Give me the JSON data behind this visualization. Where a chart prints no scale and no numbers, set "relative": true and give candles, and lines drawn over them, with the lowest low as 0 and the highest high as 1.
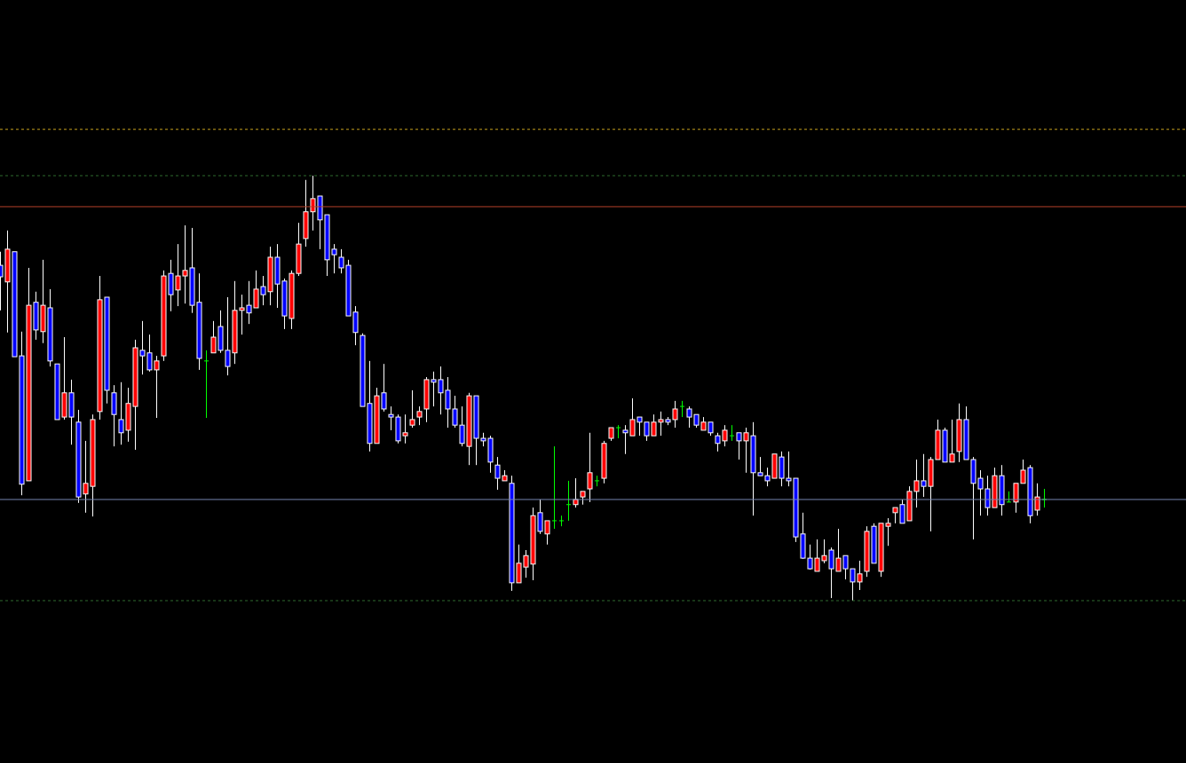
{
  "chart_data": {
    "type": "candlestick",
    "relative": true,
    "tick_labels": false,
    "grid": false,
    "legend": false,
    "categories": [
      null,
      null,
      null,
      null,
      null,
      null,
      null,
      null,
      null,
      null,
      null,
      null,
      null,
      null,
      null,
      null,
      null,
      null,
      null,
      null,
      null,
      null,
      null,
      null,
      null,
      null,
      null,
      null,
      null,
      null,
      null,
      null,
      null,
      null,
      null,
      null,
      null,
      null,
      null,
      null,
      null,
      null,
      null,
      null,
      null,
      null,
      null,
      null,
      null,
      null,
      null,
      null,
      null,
      null,
      null,
      null,
      null,
      null,
      null,
      null,
      null,
      null,
      null,
      null,
      null,
      null,
      null,
      null,
      null,
      null,
      null,
      null,
      null,
      null,
      null,
      null,
      null,
      null,
      null,
      null,
      null,
      null,
      null,
      null,
      null,
      null,
      null,
      null,
      null,
      null,
      null,
      null,
      null,
      null,
      null,
      null,
      null,
      null,
      null,
      null,
      null,
      null,
      null,
      null,
      null,
      null,
      null,
      null,
      null,
      null,
      null,
      null,
      null,
      null,
      null,
      null,
      null,
      null,
      null,
      null,
      null,
      null,
      null,
      null,
      null,
      null,
      null,
      null,
      null,
      null,
      null,
      null,
      null,
      null,
      null,
      null,
      null,
      null,
      null,
      null,
      null,
      null,
      null,
      null,
      null,
      null,
      null,
      null
    ],
    "ohlc": [
      [
        0.789,
        0.821,
        0.683,
        0.762
      ],
      [
        0.75,
        0.871,
        0.631,
        0.827
      ],
      [
        0.821,
        0.821,
        0.574,
        0.574
      ],
      [
        0.576,
        0.633,
        0.248,
        0.274
      ],
      [
        0.282,
        0.783,
        0.282,
        0.695
      ],
      [
        0.702,
        0.727,
        0.614,
        0.637
      ],
      [
        0.633,
        0.802,
        0.606,
        0.695
      ],
      [
        0.689,
        0.733,
        0.551,
        0.564
      ],
      [
        0.557,
        0.557,
        0.426,
        0.426
      ],
      [
        0.432,
        0.62,
        0.426,
        0.489
      ],
      [
        0.489,
        0.52,
        0.367,
        0.432
      ],
      [
        0.42,
        0.449,
        0.23,
        0.244
      ],
      [
        0.251,
        0.376,
        0.207,
        0.276
      ],
      [
        0.269,
        0.438,
        0.198,
        0.426
      ],
      [
        0.445,
        0.764,
        0.426,
        0.708
      ],
      [
        0.714,
        0.714,
        0.464,
        0.495
      ],
      [
        0.489,
        0.507,
        0.363,
        0.438
      ],
      [
        0.426,
        0.514,
        0.367,
        0.395
      ],
      [
        0.401,
        0.501,
        0.374,
        0.464
      ],
      [
        0.457,
        0.614,
        0.355,
        0.595
      ],
      [
        0.589,
        0.658,
        0.532,
        0.576
      ],
      [
        0.583,
        0.626,
        0.539,
        0.543
      ],
      [
        0.543,
        0.576,
        0.43,
        0.564
      ],
      [
        0.576,
        0.777,
        0.564,
        0.764
      ],
      [
        0.77,
        0.802,
        0.681,
        0.72
      ],
      [
        0.731,
        0.839,
        0.693,
        0.764
      ],
      [
        0.764,
        0.883,
        0.699,
        0.777
      ],
      [
        0.783,
        0.877,
        0.677,
        0.695
      ],
      [
        0.702,
        0.77,
        0.543,
        0.57
      ],
      [
        0.564,
        0.589,
        0.43,
        0.564
      ],
      [
        0.583,
        0.658,
        0.583,
        0.62
      ],
      [
        0.645,
        0.683,
        0.583,
        0.589
      ],
      [
        0.589,
        0.714,
        0.53,
        0.551
      ],
      [
        0.583,
        0.752,
        0.557,
        0.683
      ],
      [
        0.683,
        0.72,
        0.626,
        0.689
      ],
      [
        0.695,
        0.752,
        0.651,
        0.677
      ],
      [
        0.689,
        0.777,
        0.689,
        0.733
      ],
      [
        0.739,
        0.764,
        0.695,
        0.72
      ],
      [
        0.727,
        0.833,
        0.695,
        0.808
      ],
      [
        0.808,
        0.839,
        0.689,
        0.745
      ],
      [
        0.752,
        0.758,
        0.639,
        0.67
      ],
      [
        0.664,
        0.777,
        0.639,
        0.77
      ],
      [
        0.77,
        0.889,
        0.764,
        0.839
      ],
      [
        0.852,
        0.99,
        0.833,
        0.915
      ],
      [
        0.915,
        1.0,
        0.871,
        0.946
      ],
      [
        0.952,
        0.952,
        0.827,
        0.896
      ],
      [
        0.908,
        0.908,
        0.764,
        0.802
      ],
      [
        0.827,
        0.839,
        0.77,
        0.814
      ],
      [
        0.808,
        0.827,
        0.77,
        0.783
      ],
      [
        0.789,
        0.802,
        0.67,
        0.67
      ],
      [
        0.679,
        0.693,
        0.601,
        0.631
      ],
      [
        0.624,
        0.629,
        0.457,
        0.457
      ],
      [
        0.464,
        0.564,
        0.351,
        0.37
      ],
      [
        0.37,
        0.501,
        0.37,
        0.482
      ],
      [
        0.489,
        0.557,
        0.445,
        0.451
      ],
      [
        0.438,
        0.457,
        0.401,
        0.432
      ],
      [
        0.432,
        0.438,
        0.37,
        0.376
      ],
      [
        0.388,
        0.438,
        0.37,
        0.395
      ],
      [
        0.413,
        0.495,
        0.407,
        0.426
      ],
      [
        0.432,
        0.457,
        0.413,
        0.445
      ],
      [
        0.451,
        0.526,
        0.42,
        0.52
      ],
      [
        0.52,
        0.539,
        0.457,
        0.514
      ],
      [
        0.52,
        0.551,
        0.438,
        0.489
      ],
      [
        0.495,
        0.526,
        0.407,
        0.451
      ],
      [
        0.451,
        0.482,
        0.407,
        0.413
      ],
      [
        0.413,
        0.457,
        0.363,
        0.37
      ],
      [
        0.363,
        0.489,
        0.319,
        0.482
      ],
      [
        0.482,
        0.482,
        0.319,
        0.382
      ],
      [
        0.382,
        0.395,
        0.363,
        0.376
      ],
      [
        0.382,
        0.388,
        0.301,
        0.326
      ],
      [
        0.319,
        0.338,
        0.261,
        0.288
      ],
      [
        0.282,
        0.307,
        0.282,
        0.294
      ],
      [
        0.276,
        0.294,
        0.023,
        0.042
      ],
      [
        0.042,
        0.132,
        0.042,
        0.088
      ],
      [
        0.079,
        0.119,
        0.054,
        0.106
      ],
      [
        0.086,
        0.219,
        0.048,
        0.2
      ],
      [
        0.207,
        0.238,
        0.157,
        0.163
      ],
      [
        0.157,
        0.188,
        0.132,
        0.188
      ],
      [
        0.188,
        0.363,
        0.169,
        0.188
      ],
      [
        0.188,
        0.2,
        0.175,
        0.188
      ],
      [
        0.226,
        0.282,
        0.188,
        0.226
      ],
      [
        0.226,
        0.288,
        0.219,
        0.238
      ],
      [
        0.244,
        0.257,
        0.226,
        0.257
      ],
      [
        0.263,
        0.395,
        0.232,
        0.301
      ],
      [
        0.282,
        0.294,
        0.269,
        0.282
      ],
      [
        0.288,
        0.376,
        0.276,
        0.37
      ],
      [
        0.382,
        0.407,
        0.376,
        0.407
      ],
      [
        0.407,
        0.413,
        0.382,
        0.407
      ],
      [
        0.401,
        0.413,
        0.345,
        0.395
      ],
      [
        0.388,
        0.476,
        0.388,
        0.426
      ],
      [
        0.432,
        0.432,
        0.388,
        0.42
      ],
      [
        0.42,
        0.42,
        0.376,
        0.388
      ],
      [
        0.388,
        0.438,
        0.388,
        0.42
      ],
      [
        0.42,
        0.445,
        0.388,
        0.426
      ],
      [
        0.426,
        0.432,
        0.413,
        0.42
      ],
      [
        0.426,
        0.47,
        0.407,
        0.451
      ],
      [
        0.457,
        0.47,
        0.432,
        0.457
      ],
      [
        0.451,
        0.457,
        0.407,
        0.432
      ],
      [
        0.438,
        0.438,
        0.407,
        0.413
      ],
      [
        0.401,
        0.432,
        0.401,
        0.42
      ],
      [
        0.42,
        0.42,
        0.388,
        0.395
      ],
      [
        0.388,
        0.395,
        0.351,
        0.37
      ],
      [
        0.376,
        0.413,
        0.363,
        0.401
      ],
      [
        0.388,
        0.413,
        0.376,
        0.388
      ],
      [
        0.395,
        0.395,
        0.332,
        0.376
      ],
      [
        0.376,
        0.407,
        0.301,
        0.395
      ],
      [
        0.388,
        0.42,
        0.2,
        0.301
      ],
      [
        0.301,
        0.338,
        0.294,
        0.294
      ],
      [
        0.294,
        0.313,
        0.269,
        0.282
      ],
      [
        0.288,
        0.345,
        0.288,
        0.345
      ],
      [
        0.338,
        0.351,
        0.269,
        0.288
      ],
      [
        0.288,
        0.351,
        0.269,
        0.282
      ],
      [
        0.288,
        0.288,
        0.138,
        0.15
      ],
      [
        0.157,
        0.207,
        0.098,
        0.1
      ],
      [
        0.1,
        0.132,
        0.073,
        0.075
      ],
      [
        0.069,
        0.144,
        0.069,
        0.1
      ],
      [
        0.094,
        0.144,
        0.088,
        0.106
      ],
      [
        0.119,
        0.125,
        0.006,
        0.075
      ],
      [
        0.069,
        0.169,
        0.069,
        0.1
      ],
      [
        0.106,
        0.106,
        0.05,
        0.075
      ],
      [
        0.075,
        0.075,
        0.0,
        0.044
      ],
      [
        0.044,
        0.094,
        0.025,
        0.063
      ],
      [
        0.069,
        0.175,
        0.056,
        0.163
      ],
      [
        0.175,
        0.182,
        0.088,
        0.088
      ],
      [
        0.069,
        0.182,
        0.056,
        0.182
      ],
      [
        0.175,
        0.194,
        0.129,
        0.182
      ],
      [
        0.207,
        0.219,
        0.182,
        0.219
      ],
      [
        0.226,
        0.238,
        0.182,
        0.182
      ],
      [
        0.188,
        0.269,
        0.188,
        0.257
      ],
      [
        0.257,
        0.332,
        0.219,
        0.282
      ],
      [
        0.282,
        0.345,
        0.244,
        0.269
      ],
      [
        0.269,
        0.338,
        0.163,
        0.332
      ],
      [
        0.332,
        0.426,
        0.332,
        0.401
      ],
      [
        0.401,
        0.407,
        0.326,
        0.326
      ],
      [
        0.326,
        0.426,
        0.326,
        0.345
      ],
      [
        0.351,
        0.464,
        0.326,
        0.426
      ],
      [
        0.426,
        0.457,
        0.332,
        0.332
      ],
      [
        0.332,
        0.338,
        0.144,
        0.276
      ],
      [
        0.288,
        0.307,
        0.2,
        0.263
      ],
      [
        0.263,
        0.294,
        0.2,
        0.219
      ],
      [
        0.219,
        0.313,
        0.219,
        0.294
      ],
      [
        0.294,
        0.319,
        0.2,
        0.226
      ],
      [
        0.232,
        0.257,
        0.232,
        0.232
      ],
      [
        0.232,
        0.276,
        0.207,
        0.276
      ],
      [
        0.276,
        0.332,
        0.276,
        0.307
      ],
      [
        0.313,
        0.319,
        0.182,
        0.2
      ],
      [
        0.213,
        0.276,
        0.2,
        0.244
      ],
      [
        0.238,
        0.263,
        0.219,
        0.238
      ]
    ],
    "colors": [
      "#0000ff",
      "#ff0000",
      "#0000ff",
      "#0000ff",
      "#ff0000",
      "#0000ff",
      "#ff0000",
      "#0000ff",
      "#0000ff",
      "#ff0000",
      "#0000ff",
      "#0000ff",
      "#ff0000",
      "#ff0000",
      "#ff0000",
      "#0000ff",
      "#0000ff",
      "#0000ff",
      "#ff0000",
      "#ff0000",
      "#0000ff",
      "#0000ff",
      "#ff0000",
      "#ff0000",
      "#0000ff",
      "#ff0000",
      "#ff0000",
      "#0000ff",
      "#0000ff",
      "#00ff00",
      "#ff0000",
      "#0000ff",
      "#0000ff",
      "#ff0000",
      "#ff0000",
      "#0000ff",
      "#ff0000",
      "#0000ff",
      "#ff0000",
      "#0000ff",
      "#0000ff",
      "#ff0000",
      "#ff0000",
      "#ff0000",
      "#ff0000",
      "#0000ff",
      "#0000ff",
      "#0000ff",
      "#0000ff",
      "#0000ff",
      "#0000ff",
      "#0000ff",
      "#0000ff",
      "#ff0000",
      "#0000ff",
      "#0000ff",
      "#0000ff",
      "#ff0000",
      "#ff0000",
      "#ff0000",
      "#ff0000",
      "#0000ff",
      "#0000ff",
      "#0000ff",
      "#0000ff",
      "#0000ff",
      "#ff0000",
      "#0000ff",
      "#0000ff",
      "#0000ff",
      "#0000ff",
      "#ff0000",
      "#0000ff",
      "#ff0000",
      "#ff0000",
      "#ff0000",
      "#0000ff",
      "#ff0000",
      "#00ff00",
      "#00ff00",
      "#00ff00",
      "#ff0000",
      "#ff0000",
      "#ff0000",
      "#00ff00",
      "#ff0000",
      "#ff0000",
      "#00ff00",
      "#0000ff",
      "#ff0000",
      "#0000ff",
      "#0000ff",
      "#ff0000",
      "#ff0000",
      "#0000ff",
      "#ff0000",
      "#00ff00",
      "#0000ff",
      "#0000ff",
      "#ff0000",
      "#0000ff",
      "#0000ff",
      "#ff0000",
      "#00ff00",
      "#0000ff",
      "#ff0000",
      "#0000ff",
      "#0000ff",
      "#0000ff",
      "#ff0000",
      "#0000ff",
      "#0000ff",
      "#0000ff",
      "#0000ff",
      "#0000ff",
      "#ff0000",
      "#ff0000",
      "#0000ff",
      "#ff0000",
      "#0000ff",
      "#0000ff",
      "#ff0000",
      "#ff0000",
      "#0000ff",
      "#ff0000",
      "#ff0000",
      "#ff0000",
      "#0000ff",
      "#ff0000",
      "#ff0000",
      "#0000ff",
      "#ff0000",
      "#ff0000",
      "#0000ff",
      "#ff0000",
      "#ff0000",
      "#0000ff",
      "#0000ff",
      "#0000ff",
      "#0000ff",
      "#ff0000",
      "#0000ff",
      "#00ff00",
      "#ff0000",
      "#ff0000",
      "#0000ff",
      "#ff0000",
      "#00ff00"
    ],
    "ref_lines": [
      {
        "axis": "y",
        "value": 1.109,
        "color": "#c8a21e",
        "line_style": "dashed"
      },
      {
        "axis": "y",
        "value": 1.0,
        "color": "#2f6b2f",
        "line_style": "dashed"
      },
      {
        "axis": "y",
        "value": 0.927,
        "color": "#b5402a",
        "line_style": "solid"
      },
      {
        "axis": "y",
        "value": 0.238,
        "color": "#7585b0",
        "line_style": "solid"
      },
      {
        "axis": "y",
        "value": 0.0,
        "color": "#2f6b2f",
        "line_style": "dashed"
      }
    ]
  }
}
